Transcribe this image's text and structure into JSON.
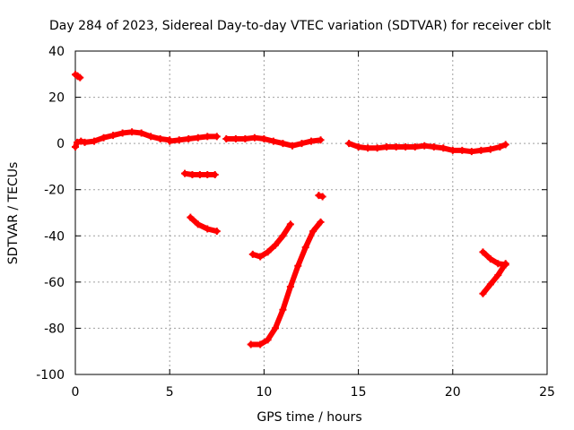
{
  "chart_data": {
    "type": "scatter",
    "title": "Day 284 of 2023, Sidereal Day-to-day VTEC variation (SDTVAR) for receiver cblt",
    "xlabel": "GPS time / hours",
    "ylabel": "SDTVAR / TECUs",
    "xlim": [
      0,
      25
    ],
    "ylim": [
      -100,
      40
    ],
    "x_ticks": [
      0,
      5,
      10,
      15,
      20,
      25
    ],
    "y_ticks": [
      -100,
      -80,
      -60,
      -40,
      -20,
      0,
      20,
      40
    ],
    "grid": true,
    "marker_color": "#ff0000",
    "series": [
      {
        "x": [
          0.0,
          0.1,
          0.15,
          0.25
        ],
        "y": [
          29.8,
          29.3,
          29.0,
          28.5
        ]
      },
      {
        "x": [
          0.0,
          0.1,
          0.3,
          0.5,
          1.0,
          1.5,
          2.0,
          2.5,
          3.0,
          3.5,
          4.0,
          4.5,
          5.0
        ],
        "y": [
          -1.5,
          0.5,
          1.0,
          0.5,
          1.0,
          2.5,
          3.5,
          4.5,
          5.0,
          4.5,
          3.0,
          2.0,
          1.5
        ]
      },
      {
        "x": [
          5.0,
          5.5,
          6.0,
          6.5,
          7.0,
          7.5
        ],
        "y": [
          1.0,
          1.5,
          2.0,
          2.5,
          3.0,
          3.0
        ]
      },
      {
        "x": [
          8.0,
          8.5,
          9.0,
          9.5,
          10.0,
          10.5,
          11.0,
          11.5,
          12.0,
          12.5,
          13.0
        ],
        "y": [
          2.0,
          2.0,
          2.0,
          2.5,
          2.0,
          1.0,
          0.0,
          -1.0,
          0.0,
          1.0,
          1.5
        ]
      },
      {
        "x": [
          14.5,
          15.0,
          15.5,
          16.0,
          16.5,
          17.0,
          17.5,
          18.0,
          18.5,
          19.0,
          19.5,
          20.0,
          20.5,
          21.0,
          21.5,
          22.0,
          22.5,
          22.8
        ],
        "y": [
          0.0,
          -1.5,
          -2.0,
          -2.0,
          -1.5,
          -1.5,
          -1.5,
          -1.5,
          -1.0,
          -1.5,
          -2.0,
          -3.0,
          -3.0,
          -3.5,
          -3.0,
          -2.5,
          -1.5,
          -0.5
        ]
      },
      {
        "x": [
          5.8,
          6.2,
          6.6,
          7.0,
          7.4
        ],
        "y": [
          -13.0,
          -13.5,
          -13.5,
          -13.5,
          -13.5
        ]
      },
      {
        "x": [
          6.1,
          6.5,
          7.0,
          7.5
        ],
        "y": [
          -32.0,
          -35.0,
          -37.0,
          -38.0
        ]
      },
      {
        "x": [
          12.9,
          13.1
        ],
        "y": [
          -22.5,
          -23.0
        ]
      },
      {
        "x": [
          9.4,
          9.8,
          10.2,
          10.6,
          11.0,
          11.4
        ],
        "y": [
          -48.0,
          -49.0,
          -47.0,
          -44.0,
          -40.0,
          -35.0
        ]
      },
      {
        "x": [
          9.3,
          9.8,
          10.2,
          10.6,
          11.0,
          11.4,
          11.8,
          12.2,
          12.6,
          13.0
        ],
        "y": [
          -87.0,
          -87.0,
          -85.0,
          -80.0,
          -72.0,
          -62.0,
          -53.0,
          -45.0,
          -38.0,
          -34.0
        ]
      },
      {
        "x": [
          21.6,
          22.0,
          22.4,
          22.8
        ],
        "y": [
          -47.0,
          -50.0,
          -52.0,
          -52.5
        ]
      },
      {
        "x": [
          21.6,
          22.0,
          22.4,
          22.8
        ],
        "y": [
          -65.0,
          -61.0,
          -57.0,
          -52.0
        ]
      }
    ]
  }
}
